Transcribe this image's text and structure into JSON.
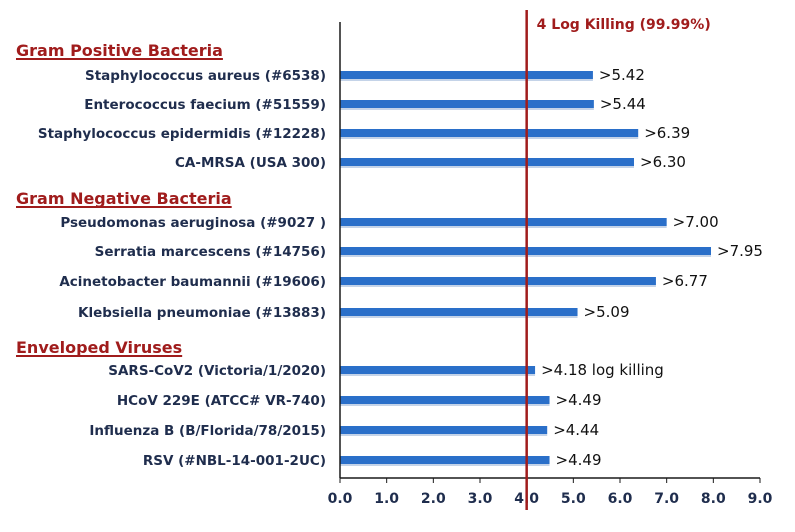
{
  "chart_data": {
    "type": "bar",
    "orientation": "horizontal",
    "colors": {
      "bar": "#2a6fc9",
      "reference_line": "#a01c1c",
      "group_label": "#a01c1c",
      "axis": "#1a1a1a",
      "text": "#1f2d4d"
    },
    "xlim": [
      0,
      9
    ],
    "xticks": [
      "0.0",
      "1.0",
      "2.0",
      "3.0",
      "4.0",
      "5.0",
      "6.0",
      "7.0",
      "8.0",
      "9.0"
    ],
    "reference_line": {
      "x": 4,
      "label": "4 Log Killing (99.99%)"
    },
    "groups": [
      {
        "label": "Gram Positive Bacteria",
        "items": [
          {
            "label": "Staphylococcus aureus (#6538)",
            "value": 5.42,
            "value_label": ">5.42"
          },
          {
            "label": "Enterococcus faecium (#51559)",
            "value": 5.44,
            "value_label": ">5.44"
          },
          {
            "label": "Staphylococcus epidermidis (#12228)",
            "value": 6.39,
            "value_label": ">6.39"
          },
          {
            "label": "CA-MRSA (USA 300)",
            "value": 6.3,
            "value_label": ">6.30"
          }
        ]
      },
      {
        "label": "Gram Negative Bacteria",
        "items": [
          {
            "label": "Pseudomonas aeruginosa (#9027 )",
            "value": 7.0,
            "value_label": ">7.00"
          },
          {
            "label": "Serratia marcescens (#14756)",
            "value": 7.95,
            "value_label": ">7.95"
          },
          {
            "label": "Acinetobacter baumannii (#19606)",
            "value": 6.77,
            "value_label": ">6.77"
          },
          {
            "label": "Klebsiella pneumoniae (#13883)",
            "value": 5.09,
            "value_label": ">5.09"
          }
        ]
      },
      {
        "label": "Enveloped Viruses",
        "items": [
          {
            "label": "SARS-CoV2 (Victoria/1/2020)",
            "value": 4.18,
            "value_label": ">4.18 log killing"
          },
          {
            "label": "HCoV 229E (ATCC# VR-740)",
            "value": 4.49,
            "value_label": ">4.49"
          },
          {
            "label": "Influenza B (B/Florida/78/2015)",
            "value": 4.44,
            "value_label": ">4.44"
          },
          {
            "label": "RSV (#NBL-14-001-2UC)",
            "value": 4.49,
            "value_label": ">4.49"
          }
        ]
      }
    ]
  }
}
